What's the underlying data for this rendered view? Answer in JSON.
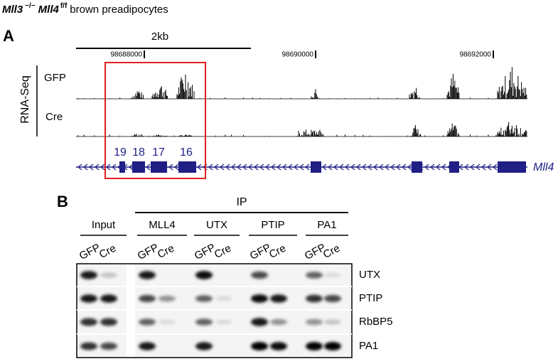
{
  "title": {
    "gene1": "Mll3",
    "sup1": "−/−",
    "gene2": "Mll4",
    "sup2": "f/f",
    "rest": "brown preadipocytes"
  },
  "panel_a": {
    "label": "A",
    "scale_bar": "2kb",
    "coordinates": [
      "98688000",
      "98690000",
      "98692000"
    ],
    "track_group": "RNA-Seq",
    "tracks": [
      "GFP",
      "Cre"
    ],
    "exons": [
      "19",
      "18",
      "17",
      "16"
    ],
    "gene": "Mll4"
  },
  "panel_b": {
    "label": "B",
    "ip_label": "IP",
    "groups": [
      {
        "name": "Input",
        "lanes": [
          "GFP",
          "Cre"
        ]
      },
      {
        "name": "MLL4",
        "lanes": [
          "GFP",
          "Cre"
        ]
      },
      {
        "name": "UTX",
        "lanes": [
          "GFP",
          "Cre"
        ]
      },
      {
        "name": "PTIP",
        "lanes": [
          "GFP",
          "Cre"
        ]
      },
      {
        "name": "PA1",
        "lanes": [
          "GFP",
          "Cre"
        ]
      }
    ],
    "blots": [
      "UTX",
      "PTIP",
      "RbBP5",
      "PA1"
    ]
  }
}
